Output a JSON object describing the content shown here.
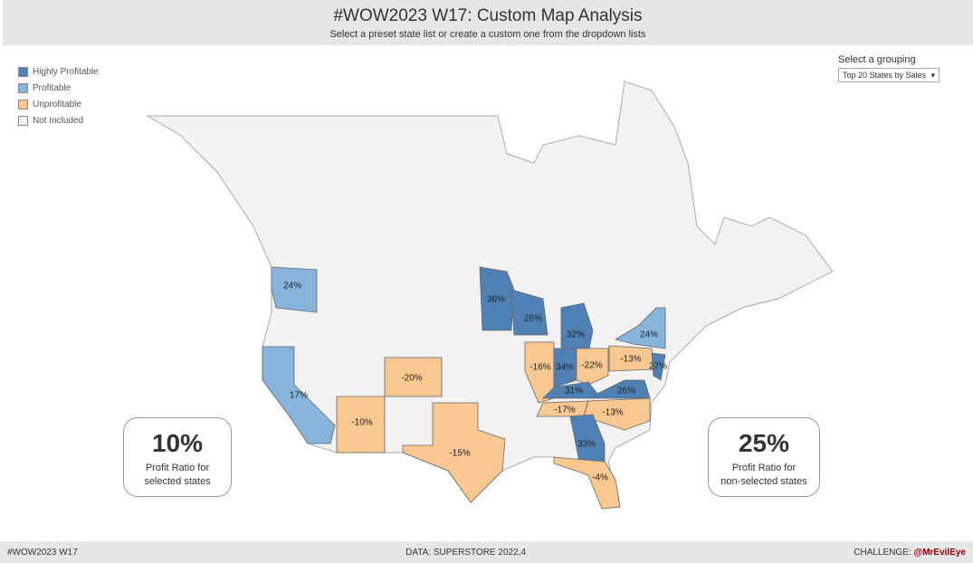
{
  "header": {
    "title": "#WOW2023 W17: Custom Map Analysis",
    "subtitle": "Select a preset state list or create a custom one from the dropdown lists"
  },
  "legend": [
    {
      "label": "Highly Profitable",
      "color": "#4f81b5"
    },
    {
      "label": "Profitable",
      "color": "#87b4dc"
    },
    {
      "label": "Unprofitable",
      "color": "#f9c890"
    },
    {
      "label": "Not Included",
      "color": "#f2f2f2"
    }
  ],
  "grouping": {
    "label": "Select a grouping",
    "value": "Top 20 States by Sales"
  },
  "states": [
    {
      "name": "WA",
      "value": "24%",
      "cat": 1
    },
    {
      "name": "CA",
      "value": "17%",
      "cat": 1
    },
    {
      "name": "AZ",
      "value": "-10%",
      "cat": 2
    },
    {
      "name": "CO",
      "value": "-20%",
      "cat": 2
    },
    {
      "name": "TX",
      "value": "-15%",
      "cat": 2
    },
    {
      "name": "MN",
      "value": "36%",
      "cat": 0
    },
    {
      "name": "WI",
      "value": "26%",
      "cat": 0
    },
    {
      "name": "MI",
      "value": "32%",
      "cat": 0
    },
    {
      "name": "IL",
      "value": "-16%",
      "cat": 2
    },
    {
      "name": "IN",
      "value": "34%",
      "cat": 0
    },
    {
      "name": "OH",
      "value": "-22%",
      "cat": 2
    },
    {
      "name": "KY",
      "value": "31%",
      "cat": 0
    },
    {
      "name": "VA",
      "value": "26%",
      "cat": 0
    },
    {
      "name": "TN",
      "value": "-17%",
      "cat": 2
    },
    {
      "name": "NC",
      "value": "-13%",
      "cat": 2
    },
    {
      "name": "GA",
      "value": "33%",
      "cat": 0
    },
    {
      "name": "FL",
      "value": "-4%",
      "cat": 2
    },
    {
      "name": "NY",
      "value": "24%",
      "cat": 1
    },
    {
      "name": "PA",
      "value": "-13%",
      "cat": 2
    },
    {
      "name": "NJ",
      "value": "27%",
      "cat": 0
    }
  ],
  "kpi_left": {
    "value": "10%",
    "label1": "Profit Ratio for",
    "label2": "selected states"
  },
  "kpi_right": {
    "value": "25%",
    "label1": "Profit Ratio for",
    "label2": "non-selected states"
  },
  "footer": {
    "left": "#WOW2023 W17",
    "center": "DATA: SUPERSTORE 2022.4",
    "right_prefix": "CHALLENGE: ",
    "right_handle": "@MrEvilEye"
  }
}
